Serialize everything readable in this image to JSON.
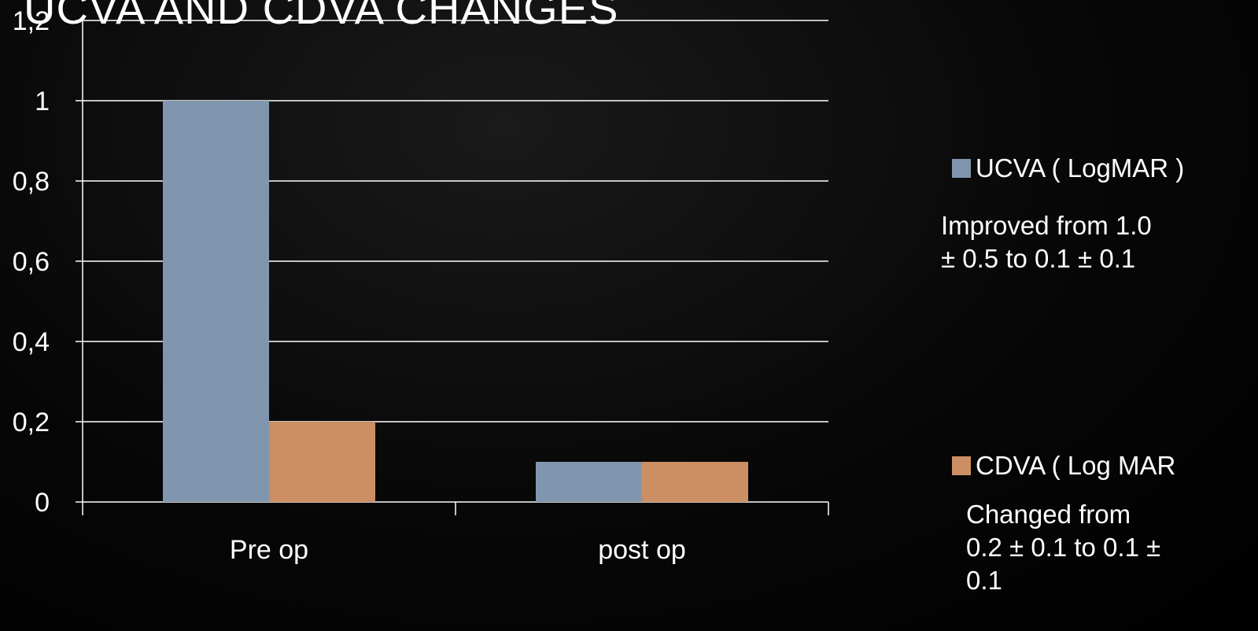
{
  "slide": {
    "title": "UCVA AND CDVA CHANGES"
  },
  "chart_data": {
    "type": "bar",
    "categories": [
      "Pre op",
      "post op"
    ],
    "series": [
      {
        "name": "UCVA ( LogMAR )",
        "values": [
          1.0,
          0.1
        ],
        "color": "#8096AE"
      },
      {
        "name": "CDVA ( Log MAR",
        "values": [
          0.2,
          0.1
        ],
        "color": "#CC8F63"
      }
    ],
    "yticks": [
      "0",
      "0,2",
      "0,4",
      "0,6",
      "0,8",
      "1",
      "1,2"
    ],
    "ylim": [
      0,
      1.2
    ],
    "grid": true,
    "legend_position": "right",
    "colors": {
      "axis": "#ffffff",
      "grid": "#ffffff"
    }
  },
  "notes": {
    "ucva": "Improved from 1.0\n±  0.5 to 0.1 ± 0.1",
    "cdva": "Changed from\n0.2 ± 0.1 to 0.1 ±\n0.1"
  }
}
